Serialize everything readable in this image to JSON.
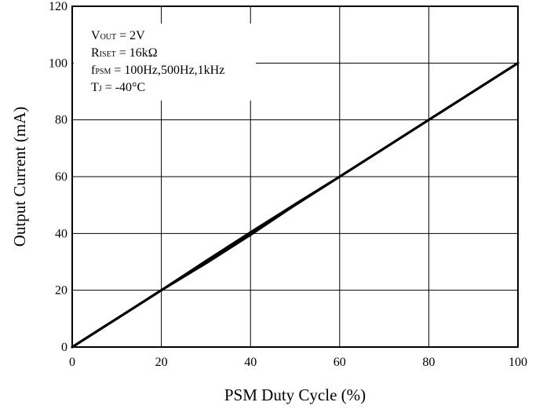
{
  "chart_data": {
    "type": "line",
    "xlabel": "PSM Duty Cycle (%)",
    "ylabel": "Output Current (mA)",
    "xlim": [
      0,
      100
    ],
    "ylim": [
      0,
      120
    ],
    "xticks": [
      0,
      20,
      40,
      60,
      80,
      100
    ],
    "yticks": [
      0,
      20,
      40,
      60,
      80,
      100,
      120
    ],
    "grid": true,
    "legend_position": "top-left",
    "conditions": [
      {
        "main": "V",
        "sub": "OUT",
        "rest": " = 2V"
      },
      {
        "main": "R",
        "sub": "ISET",
        "rest": " = 16kΩ"
      },
      {
        "main": "f",
        "sub": "PSM",
        "rest": " = 100Hz,500Hz,1kHz"
      },
      {
        "main": "T",
        "sub": "J",
        "rest": " = -40°C"
      }
    ],
    "series": [
      {
        "x": [
          0,
          10,
          20,
          30,
          40,
          50,
          60,
          70,
          80,
          90,
          100
        ],
        "y": [
          0,
          10,
          20,
          30,
          40,
          50,
          60,
          70,
          80,
          90,
          100
        ]
      },
      {
        "x": [
          0,
          10,
          20,
          30,
          35,
          40,
          50,
          60,
          70,
          80,
          90,
          100
        ],
        "y": [
          0,
          10,
          20,
          29.5,
          34.5,
          39.5,
          50,
          60,
          70,
          80,
          90,
          100
        ]
      },
      {
        "x": [
          0,
          10,
          20,
          30,
          40,
          50,
          60,
          70,
          80,
          90,
          100
        ],
        "y": [
          0,
          10,
          20,
          30.3,
          40.4,
          50.3,
          60,
          70,
          80,
          90,
          100
        ]
      }
    ],
    "line_color": "#000000"
  }
}
